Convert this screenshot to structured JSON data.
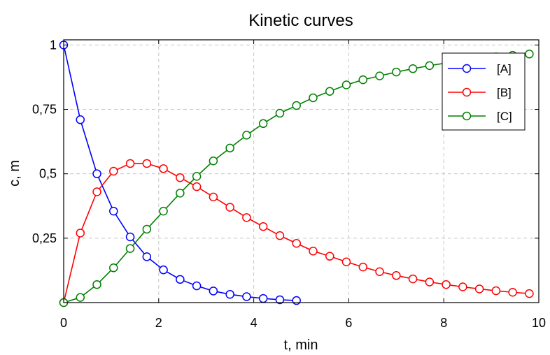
{
  "chart_data": {
    "type": "line",
    "title": "Kinetic curves",
    "xlabel": "t, min",
    "ylabel": "c, m",
    "xlim": [
      0,
      10
    ],
    "ylim": [
      0,
      1.02
    ],
    "xticks": [
      0,
      2,
      4,
      6,
      8,
      10
    ],
    "xtick_labels": [
      "0",
      "2",
      "4",
      "6",
      "8",
      "10"
    ],
    "yticks": [
      0.25,
      0.5,
      0.75,
      1
    ],
    "ytick_labels": [
      "0,25",
      "0,5",
      "0,75",
      "1"
    ],
    "grid": true,
    "legend_position": "top-right",
    "x": [
      0,
      0.35,
      0.7,
      1.05,
      1.4,
      1.75,
      2.1,
      2.45,
      2.8,
      3.15,
      3.5,
      3.85,
      4.2,
      4.55,
      4.9,
      5.25,
      5.6,
      5.95,
      6.3,
      6.65,
      7.0,
      7.35,
      7.7,
      8.05,
      8.4,
      8.75,
      9.1,
      9.45,
      9.8
    ],
    "series": [
      {
        "name": "[A]",
        "color": "#0000ff",
        "x": [
          0,
          0.35,
          0.7,
          1.05,
          1.4,
          1.75,
          2.1,
          2.45,
          2.8,
          3.15,
          3.5,
          3.85,
          4.2,
          4.55,
          4.9
        ],
        "values": [
          1.0,
          0.71,
          0.5,
          0.355,
          0.255,
          0.178,
          0.127,
          0.09,
          0.065,
          0.045,
          0.032,
          0.023,
          0.016,
          0.011,
          0.008
        ]
      },
      {
        "name": "[B]",
        "color": "#ff0000",
        "values": [
          0.0,
          0.27,
          0.43,
          0.51,
          0.54,
          0.54,
          0.52,
          0.485,
          0.45,
          0.41,
          0.37,
          0.33,
          0.295,
          0.26,
          0.23,
          0.2,
          0.18,
          0.158,
          0.138,
          0.12,
          0.105,
          0.092,
          0.08,
          0.07,
          0.061,
          0.053,
          0.046,
          0.04,
          0.035
        ]
      },
      {
        "name": "[C]",
        "color": "#008000",
        "values": [
          0.0,
          0.02,
          0.07,
          0.135,
          0.21,
          0.285,
          0.355,
          0.425,
          0.49,
          0.55,
          0.6,
          0.65,
          0.695,
          0.735,
          0.765,
          0.795,
          0.82,
          0.845,
          0.865,
          0.88,
          0.895,
          0.908,
          0.92,
          0.93,
          0.94,
          0.948,
          0.954,
          0.96,
          0.965
        ]
      }
    ]
  }
}
